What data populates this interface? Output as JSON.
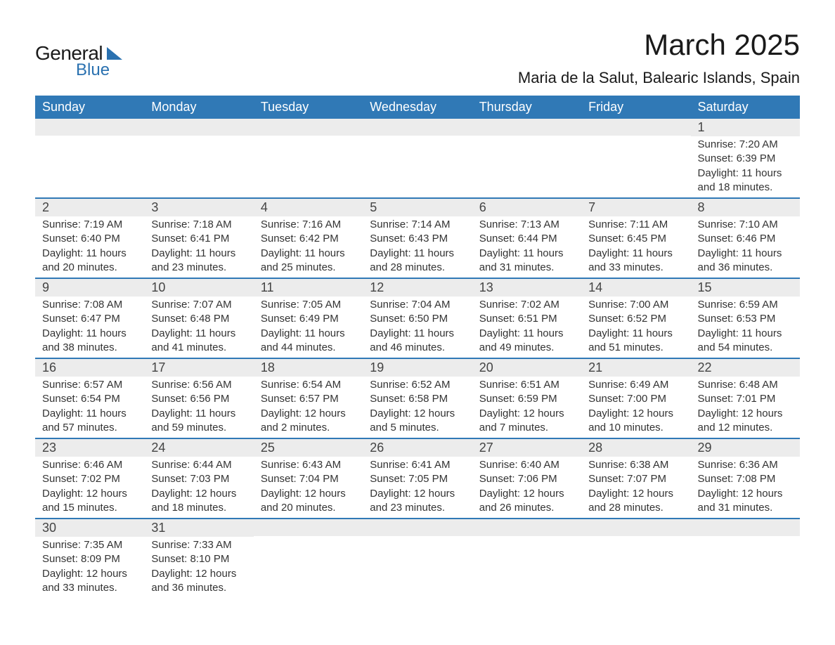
{
  "brand": {
    "general": "General",
    "blue": "Blue"
  },
  "title": "March 2025",
  "subtitle": "Maria de la Salut, Balearic Islands, Spain",
  "colors": {
    "header_bg": "#3079b6",
    "header_text": "#ffffff",
    "daynum_bg": "#ececec",
    "row_divider": "#3079b6",
    "body_text": "#333333",
    "logo_blue": "#2a71b0"
  },
  "day_headers": [
    "Sunday",
    "Monday",
    "Tuesday",
    "Wednesday",
    "Thursday",
    "Friday",
    "Saturday"
  ],
  "weeks": [
    [
      null,
      null,
      null,
      null,
      null,
      null,
      {
        "n": "1",
        "sunrise": "7:20 AM",
        "sunset": "6:39 PM",
        "daylight": "11 hours and 18 minutes."
      }
    ],
    [
      {
        "n": "2",
        "sunrise": "7:19 AM",
        "sunset": "6:40 PM",
        "daylight": "11 hours and 20 minutes."
      },
      {
        "n": "3",
        "sunrise": "7:18 AM",
        "sunset": "6:41 PM",
        "daylight": "11 hours and 23 minutes."
      },
      {
        "n": "4",
        "sunrise": "7:16 AM",
        "sunset": "6:42 PM",
        "daylight": "11 hours and 25 minutes."
      },
      {
        "n": "5",
        "sunrise": "7:14 AM",
        "sunset": "6:43 PM",
        "daylight": "11 hours and 28 minutes."
      },
      {
        "n": "6",
        "sunrise": "7:13 AM",
        "sunset": "6:44 PM",
        "daylight": "11 hours and 31 minutes."
      },
      {
        "n": "7",
        "sunrise": "7:11 AM",
        "sunset": "6:45 PM",
        "daylight": "11 hours and 33 minutes."
      },
      {
        "n": "8",
        "sunrise": "7:10 AM",
        "sunset": "6:46 PM",
        "daylight": "11 hours and 36 minutes."
      }
    ],
    [
      {
        "n": "9",
        "sunrise": "7:08 AM",
        "sunset": "6:47 PM",
        "daylight": "11 hours and 38 minutes."
      },
      {
        "n": "10",
        "sunrise": "7:07 AM",
        "sunset": "6:48 PM",
        "daylight": "11 hours and 41 minutes."
      },
      {
        "n": "11",
        "sunrise": "7:05 AM",
        "sunset": "6:49 PM",
        "daylight": "11 hours and 44 minutes."
      },
      {
        "n": "12",
        "sunrise": "7:04 AM",
        "sunset": "6:50 PM",
        "daylight": "11 hours and 46 minutes."
      },
      {
        "n": "13",
        "sunrise": "7:02 AM",
        "sunset": "6:51 PM",
        "daylight": "11 hours and 49 minutes."
      },
      {
        "n": "14",
        "sunrise": "7:00 AM",
        "sunset": "6:52 PM",
        "daylight": "11 hours and 51 minutes."
      },
      {
        "n": "15",
        "sunrise": "6:59 AM",
        "sunset": "6:53 PM",
        "daylight": "11 hours and 54 minutes."
      }
    ],
    [
      {
        "n": "16",
        "sunrise": "6:57 AM",
        "sunset": "6:54 PM",
        "daylight": "11 hours and 57 minutes."
      },
      {
        "n": "17",
        "sunrise": "6:56 AM",
        "sunset": "6:56 PM",
        "daylight": "11 hours and 59 minutes."
      },
      {
        "n": "18",
        "sunrise": "6:54 AM",
        "sunset": "6:57 PM",
        "daylight": "12 hours and 2 minutes."
      },
      {
        "n": "19",
        "sunrise": "6:52 AM",
        "sunset": "6:58 PM",
        "daylight": "12 hours and 5 minutes."
      },
      {
        "n": "20",
        "sunrise": "6:51 AM",
        "sunset": "6:59 PM",
        "daylight": "12 hours and 7 minutes."
      },
      {
        "n": "21",
        "sunrise": "6:49 AM",
        "sunset": "7:00 PM",
        "daylight": "12 hours and 10 minutes."
      },
      {
        "n": "22",
        "sunrise": "6:48 AM",
        "sunset": "7:01 PM",
        "daylight": "12 hours and 12 minutes."
      }
    ],
    [
      {
        "n": "23",
        "sunrise": "6:46 AM",
        "sunset": "7:02 PM",
        "daylight": "12 hours and 15 minutes."
      },
      {
        "n": "24",
        "sunrise": "6:44 AM",
        "sunset": "7:03 PM",
        "daylight": "12 hours and 18 minutes."
      },
      {
        "n": "25",
        "sunrise": "6:43 AM",
        "sunset": "7:04 PM",
        "daylight": "12 hours and 20 minutes."
      },
      {
        "n": "26",
        "sunrise": "6:41 AM",
        "sunset": "7:05 PM",
        "daylight": "12 hours and 23 minutes."
      },
      {
        "n": "27",
        "sunrise": "6:40 AM",
        "sunset": "7:06 PM",
        "daylight": "12 hours and 26 minutes."
      },
      {
        "n": "28",
        "sunrise": "6:38 AM",
        "sunset": "7:07 PM",
        "daylight": "12 hours and 28 minutes."
      },
      {
        "n": "29",
        "sunrise": "6:36 AM",
        "sunset": "7:08 PM",
        "daylight": "12 hours and 31 minutes."
      }
    ],
    [
      {
        "n": "30",
        "sunrise": "7:35 AM",
        "sunset": "8:09 PM",
        "daylight": "12 hours and 33 minutes."
      },
      {
        "n": "31",
        "sunrise": "7:33 AM",
        "sunset": "8:10 PM",
        "daylight": "12 hours and 36 minutes."
      },
      null,
      null,
      null,
      null,
      null
    ]
  ],
  "labels": {
    "sunrise": "Sunrise:",
    "sunset": "Sunset:",
    "daylight": "Daylight:"
  }
}
